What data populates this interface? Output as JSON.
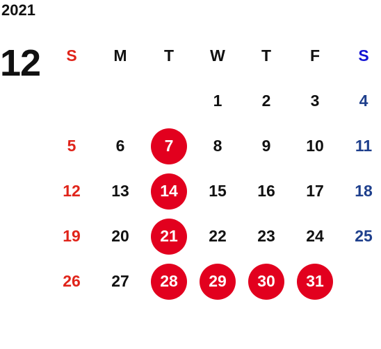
{
  "year": "2021",
  "month": "12",
  "weekdays": [
    {
      "label": "S",
      "name": "sunday"
    },
    {
      "label": "M",
      "name": "monday"
    },
    {
      "label": "T",
      "name": "tuesday"
    },
    {
      "label": "W",
      "name": "wednesday"
    },
    {
      "label": "T",
      "name": "thursday"
    },
    {
      "label": "F",
      "name": "friday"
    },
    {
      "label": "S",
      "name": "saturday"
    }
  ],
  "first_weekday_index": 3,
  "days_in_month": 31,
  "highlighted_days": [
    7,
    14,
    21,
    28,
    29,
    30,
    31
  ],
  "colors": {
    "sunday": "#e0241a",
    "saturday_header": "#1414d4",
    "saturday": "#1e3f8c",
    "highlight": "#e2001e",
    "text": "#111111"
  }
}
